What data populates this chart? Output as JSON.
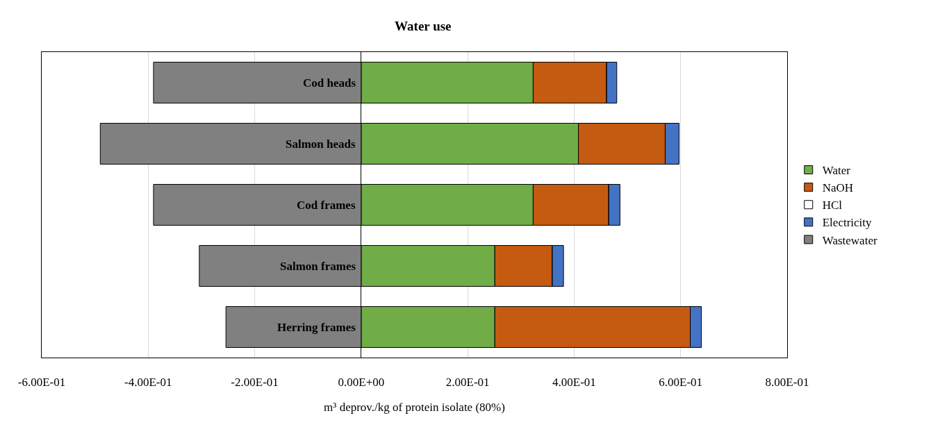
{
  "chart_data": {
    "type": "bar",
    "orientation": "horizontal",
    "stacked": true,
    "title": "Water use",
    "xlabel": "m³ deprov./kg of protein isolate (80%)",
    "categories": [
      "Cod heads",
      "Salmon heads",
      "Cod frames",
      "Salmon frames",
      "Herring frames"
    ],
    "series": [
      {
        "name": "Water",
        "color": "#70ad47",
        "values": [
          0.323,
          0.408,
          0.323,
          0.251,
          0.251
        ]
      },
      {
        "name": "NaOH",
        "color": "#c55a11",
        "values": [
          0.138,
          0.163,
          0.142,
          0.108,
          0.367
        ]
      },
      {
        "name": "HCl",
        "color": "#ffffff",
        "values": [
          0,
          0,
          0,
          0,
          0
        ]
      },
      {
        "name": "Electricity",
        "color": "#4472c4",
        "values": [
          0.019,
          0.026,
          0.021,
          0.021,
          0.021
        ]
      },
      {
        "name": "Wastewater",
        "color": "#808080",
        "values": [
          -0.39,
          -0.49,
          -0.39,
          -0.304,
          -0.254
        ]
      }
    ],
    "xlim": [
      -0.6,
      0.8
    ],
    "xticks": [
      {
        "value": -0.6,
        "label": "-6.00E-01"
      },
      {
        "value": -0.4,
        "label": "-4.00E-01"
      },
      {
        "value": -0.2,
        "label": "-2.00E-01"
      },
      {
        "value": 0,
        "label": "0.00E+00"
      },
      {
        "value": 0.2,
        "label": "2.00E-01"
      },
      {
        "value": 0.4,
        "label": "4.00E-01"
      },
      {
        "value": 0.6,
        "label": "6.00E-01"
      },
      {
        "value": 0.8,
        "label": "8.00E-01"
      }
    ],
    "grid": "x",
    "legend": "right"
  }
}
